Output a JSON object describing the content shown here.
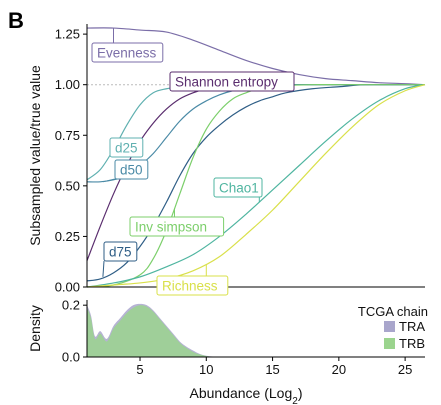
{
  "panel_label": "B",
  "chart_data": [
    {
      "type": "line",
      "ylabel": "Subsampled value/true value",
      "xlim": [
        1,
        26.5
      ],
      "ylim": [
        0,
        1.3
      ],
      "yticks": [
        "0.00",
        "0.25",
        "0.50",
        "0.75",
        "1.00",
        "1.25"
      ],
      "ytick_values": [
        0,
        0.25,
        0.5,
        0.75,
        1.0,
        1.25
      ],
      "reference_line": 1.0,
      "series": [
        {
          "name": "Evenness",
          "color": "#7b6ea8",
          "x": [
            1,
            3,
            5,
            7,
            9,
            11,
            13,
            15,
            17,
            19,
            21,
            23,
            25,
            26.5
          ],
          "y": [
            1.28,
            1.28,
            1.27,
            1.26,
            1.22,
            1.17,
            1.12,
            1.08,
            1.05,
            1.03,
            1.02,
            1.01,
            1.005,
            1.0
          ]
        },
        {
          "name": "Shannon entropy",
          "color": "#5a2d6e",
          "x": [
            1,
            2,
            3,
            4,
            5,
            6,
            7,
            8,
            9,
            10,
            11,
            12,
            14,
            16,
            18,
            20,
            22,
            24,
            26.5
          ],
          "y": [
            0.13,
            0.3,
            0.46,
            0.6,
            0.72,
            0.81,
            0.88,
            0.93,
            0.96,
            0.98,
            0.99,
            0.995,
            1.0,
            1.0,
            1.0,
            1.0,
            1.0,
            1.0,
            1.0
          ]
        },
        {
          "name": "d25",
          "color": "#5fb0b0",
          "x": [
            1,
            2,
            3,
            4,
            5,
            6,
            7,
            8,
            9,
            10,
            12,
            14,
            16,
            18,
            20,
            22,
            24,
            26.5
          ],
          "y": [
            0.53,
            0.58,
            0.68,
            0.8,
            0.9,
            0.96,
            0.98,
            0.99,
            1.0,
            1.0,
            1.0,
            1.0,
            1.0,
            1.0,
            1.0,
            1.0,
            1.0,
            1.0
          ]
        },
        {
          "name": "d50",
          "color": "#4a8aa6",
          "x": [
            1,
            2,
            3,
            4,
            5,
            6,
            7,
            8,
            9,
            10,
            11,
            12,
            13,
            14,
            16,
            18,
            20,
            22,
            24,
            26.5
          ],
          "y": [
            0.52,
            0.52,
            0.53,
            0.55,
            0.6,
            0.66,
            0.74,
            0.82,
            0.88,
            0.92,
            0.95,
            0.97,
            0.98,
            0.99,
            1.0,
            1.0,
            1.0,
            1.0,
            1.0,
            1.0
          ]
        },
        {
          "name": "d75",
          "color": "#2f5e86",
          "x": [
            1,
            2,
            3,
            4,
            5,
            6,
            7,
            8,
            9,
            10,
            11,
            12,
            13,
            14,
            15,
            16,
            18,
            20,
            22,
            24,
            26.5
          ],
          "y": [
            0.03,
            0.04,
            0.07,
            0.12,
            0.2,
            0.3,
            0.42,
            0.55,
            0.66,
            0.74,
            0.8,
            0.85,
            0.89,
            0.92,
            0.94,
            0.96,
            0.98,
            0.99,
            1.0,
            1.0,
            1.0
          ]
        },
        {
          "name": "Inv simpson",
          "color": "#7ccf6b",
          "x": [
            1,
            3,
            5,
            6,
            7,
            8,
            9,
            10,
            11,
            12,
            13,
            14,
            16,
            18,
            20,
            22,
            24,
            26.5
          ],
          "y": [
            0.0,
            0.01,
            0.06,
            0.14,
            0.28,
            0.46,
            0.64,
            0.78,
            0.87,
            0.93,
            0.96,
            0.98,
            0.995,
            1.0,
            1.0,
            1.0,
            1.0,
            1.0
          ]
        },
        {
          "name": "Chao1",
          "color": "#4fb5a0",
          "x": [
            1,
            3,
            5,
            7,
            9,
            11,
            13,
            15,
            17,
            19,
            21,
            23,
            25,
            26.5
          ],
          "y": [
            0.0,
            0.02,
            0.05,
            0.1,
            0.16,
            0.25,
            0.36,
            0.48,
            0.6,
            0.72,
            0.83,
            0.92,
            0.98,
            1.0
          ]
        },
        {
          "name": "Richness",
          "color": "#d9e04a",
          "x": [
            1,
            3,
            5,
            7,
            9,
            11,
            13,
            15,
            17,
            19,
            21,
            23,
            25,
            26.5
          ],
          "y": [
            0.0,
            0.01,
            0.02,
            0.04,
            0.08,
            0.15,
            0.26,
            0.38,
            0.52,
            0.66,
            0.79,
            0.9,
            0.97,
            1.0
          ]
        }
      ],
      "annotations": [
        {
          "text": "Evenness",
          "series": "Evenness"
        },
        {
          "text": "Shannon entropy",
          "series": "Shannon entropy"
        },
        {
          "text": "d25",
          "series": "d25"
        },
        {
          "text": "d50",
          "series": "d50"
        },
        {
          "text": "Chao1",
          "series": "Chao1"
        },
        {
          "text": "Inv simpson",
          "series": "Inv simpson"
        },
        {
          "text": "d75",
          "series": "d75"
        },
        {
          "text": "Richness",
          "series": "Richness"
        }
      ]
    },
    {
      "type": "area",
      "xlabel": "Abundance (Log",
      "xlabel_sub": "2",
      "xlabel_end": ")",
      "ylabel": "Density",
      "xlim": [
        1,
        26.5
      ],
      "ylim": [
        0,
        0.22
      ],
      "xticks": [
        "5",
        "10",
        "15",
        "20",
        "25"
      ],
      "xtick_values": [
        5,
        10,
        15,
        20,
        25
      ],
      "yticks": [
        "0.0",
        "0.2"
      ],
      "ytick_values": [
        0,
        0.2
      ],
      "legend_title": "TCGA chain",
      "legend_position": "top-right",
      "series": [
        {
          "name": "TRA",
          "color": "#a9a6cc",
          "x": [
            1,
            1.3,
            1.6,
            2,
            2.5,
            3,
            3.5,
            4,
            4.5,
            5,
            5.5,
            6,
            6.5,
            7,
            7.5,
            8,
            8.5,
            9,
            9.5,
            10,
            10.5,
            11
          ],
          "y": [
            0.2,
            0.16,
            0.08,
            0.1,
            0.07,
            0.12,
            0.15,
            0.18,
            0.2,
            0.205,
            0.2,
            0.18,
            0.15,
            0.12,
            0.09,
            0.06,
            0.04,
            0.025,
            0.012,
            0.005,
            0.002,
            0.0
          ]
        },
        {
          "name": "TRB",
          "color": "#9bd48e",
          "x": [
            1,
            1.3,
            1.6,
            2,
            2.5,
            3,
            3.5,
            4,
            4.5,
            5,
            5.5,
            6,
            6.5,
            7,
            7.5,
            8,
            8.5,
            9,
            9.5,
            10,
            10.5,
            11
          ],
          "y": [
            0.19,
            0.15,
            0.07,
            0.09,
            0.06,
            0.11,
            0.14,
            0.17,
            0.19,
            0.2,
            0.195,
            0.175,
            0.145,
            0.115,
            0.085,
            0.055,
            0.035,
            0.02,
            0.01,
            0.004,
            0.001,
            0.0
          ]
        }
      ]
    }
  ]
}
